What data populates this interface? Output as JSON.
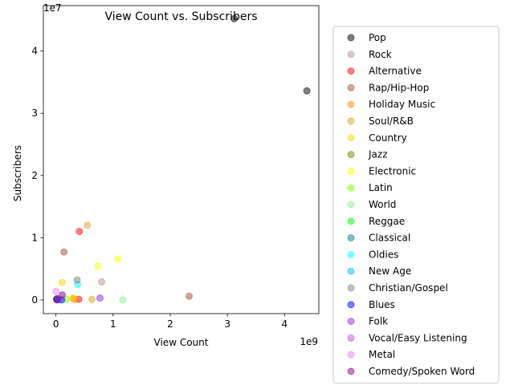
{
  "chart_data": {
    "type": "scatter",
    "title": "View Count vs. Subscribers",
    "xlabel": "View Count",
    "ylabel": "Subscribers",
    "x_offset_label": "1e9",
    "y_offset_label": "1e7",
    "x_scale": 1000000000,
    "y_scale": 10000000,
    "xlim": [
      -0.22,
      4.6
    ],
    "ylim": [
      -0.22,
      4.73
    ],
    "x_ticks": [
      0,
      1,
      2,
      3,
      4
    ],
    "y_ticks": [
      0,
      1,
      2,
      3,
      4
    ],
    "grid": false,
    "legend_placement": "outside-right",
    "series": [
      {
        "name": "Pop",
        "color": "#000000",
        "points": [
          [
            3.12,
            4.52
          ],
          [
            4.39,
            3.36
          ],
          [
            0.02,
            0.02
          ]
        ]
      },
      {
        "name": "Rock",
        "color": "#bc8f8f",
        "points": [
          [
            0.8,
            0.29
          ],
          [
            0.05,
            0.01
          ]
        ]
      },
      {
        "name": "Alternative",
        "color": "#ff0000",
        "points": [
          [
            0.41,
            1.1
          ],
          [
            0.4,
            0.01
          ]
        ]
      },
      {
        "name": "Rap/Hip-Hop",
        "color": "#a0522d",
        "points": [
          [
            0.14,
            0.77
          ],
          [
            2.33,
            0.06
          ],
          [
            0.02,
            0.01
          ]
        ]
      },
      {
        "name": "Holiday Music",
        "color": "#ff8c00",
        "points": [
          [
            0.3,
            0.02
          ],
          [
            0.33,
            0.01
          ]
        ]
      },
      {
        "name": "Soul/R&B",
        "color": "#daa520",
        "points": [
          [
            0.55,
            1.2
          ],
          [
            0.63,
            0.01
          ]
        ]
      },
      {
        "name": "Country",
        "color": "#ffd700",
        "points": [
          [
            0.11,
            0.28
          ],
          [
            0.3,
            0.03
          ]
        ]
      },
      {
        "name": "Jazz",
        "color": "#808000",
        "points": [
          [
            0.02,
            0.01
          ]
        ]
      },
      {
        "name": "Electronic",
        "color": "#ffff00",
        "points": [
          [
            1.08,
            0.66
          ],
          [
            0.74,
            0.54
          ]
        ]
      },
      {
        "name": "Latin",
        "color": "#7fff00",
        "points": [
          [
            0.18,
            0.01
          ]
        ]
      },
      {
        "name": "World",
        "color": "#90ee90",
        "points": [
          [
            1.17,
            0.0
          ]
        ]
      },
      {
        "name": "Reggae",
        "color": "#00ff00",
        "points": [
          [
            0.03,
            0.01
          ]
        ]
      },
      {
        "name": "Classical",
        "color": "#008080",
        "points": [
          [
            0.02,
            0.02
          ]
        ]
      },
      {
        "name": "Oldies",
        "color": "#00ffff",
        "points": [
          [
            0.38,
            0.25
          ]
        ]
      },
      {
        "name": "New Age",
        "color": "#00bfff",
        "points": [
          [
            0.04,
            0.01
          ]
        ]
      },
      {
        "name": "Christian/Gospel",
        "color": "#808080",
        "points": [
          [
            0.37,
            0.32
          ]
        ]
      },
      {
        "name": "Blues",
        "color": "#0000ff",
        "points": [
          [
            0.1,
            0.0
          ],
          [
            0.02,
            0.0
          ]
        ]
      },
      {
        "name": "Folk",
        "color": "#8a2be2",
        "points": [
          [
            0.77,
            0.03
          ]
        ]
      },
      {
        "name": "Vocal/Easy Listening",
        "color": "#ba55d3",
        "points": [
          [
            0.04,
            0.02
          ]
        ]
      },
      {
        "name": "Metal",
        "color": "#ee82ee",
        "points": [
          [
            0.0,
            0.14
          ]
        ]
      },
      {
        "name": "Comedy/Spoken Word",
        "color": "#8b008b",
        "points": [
          [
            0.11,
            0.08
          ],
          [
            0.01,
            0.01
          ]
        ]
      }
    ]
  }
}
